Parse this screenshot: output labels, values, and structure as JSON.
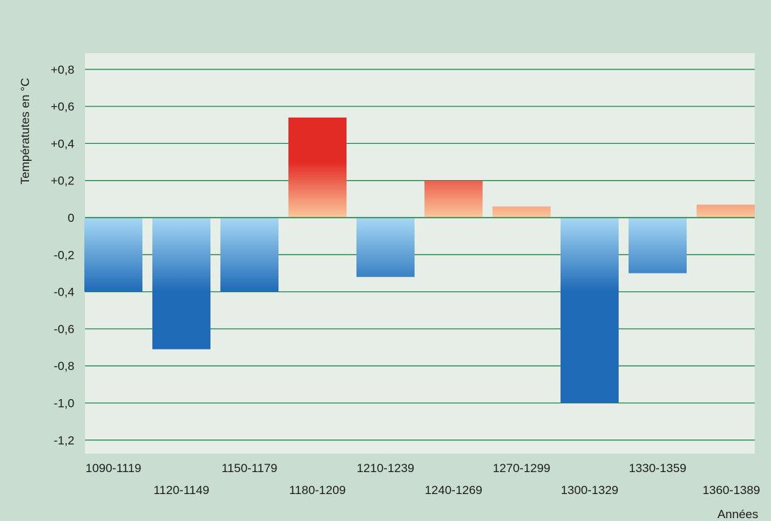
{
  "chart_data": {
    "type": "bar",
    "title": "",
    "xlabel": "Années",
    "ylabel": "Températutes en °C",
    "ylim": [
      -1.25,
      0.85
    ],
    "yticks": [
      0.8,
      0.6,
      0.4,
      0.2,
      0,
      -0.2,
      -0.4,
      -0.6,
      -0.8,
      -1.0,
      -1.2
    ],
    "ytick_labels": [
      "+0,8",
      "+0,6",
      "+0,4",
      "+0,2",
      "0",
      "-0,2",
      "-0,4",
      "-0,6",
      "-0,8",
      "-1,0",
      "-1,2"
    ],
    "categories": [
      "1090-1119",
      "1120-1149",
      "1150-1179",
      "1180-1209",
      "1210-1239",
      "1240-1269",
      "1270-1299",
      "1300-1329",
      "1330-1359",
      "1360-1389"
    ],
    "values": [
      -0.4,
      -0.71,
      -0.4,
      0.54,
      -0.32,
      0.2,
      0.06,
      -1.0,
      -0.3,
      0.07
    ],
    "grid": true,
    "colors": {
      "background": "#c9ddd0",
      "plot_background": "#e6eee7",
      "gridline": "#1f8a4a",
      "negative_light": "#a6d8f5",
      "negative_dark": "#1f6bb8",
      "positive_light": "#fbc89c",
      "positive_dark": "#e32b26"
    }
  }
}
